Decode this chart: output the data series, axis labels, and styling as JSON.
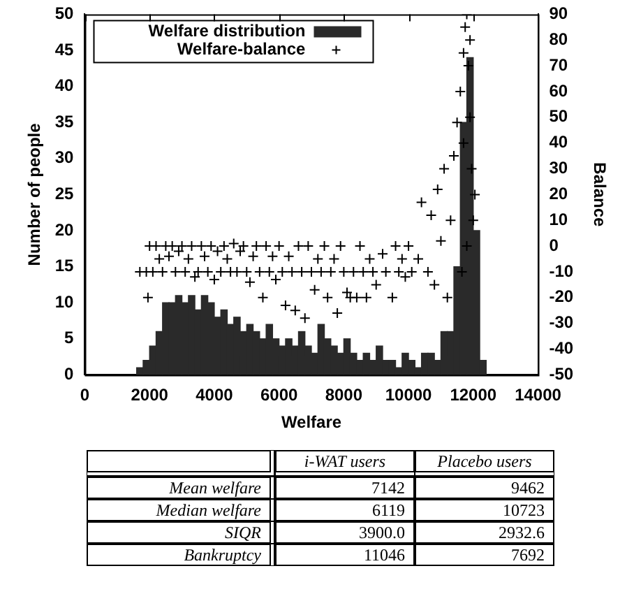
{
  "chart_data": [
    {
      "type": "histogram",
      "xlabel": "Welfare",
      "ylabel": "Number of people",
      "y2label": "Balance",
      "legend": "top left",
      "grid": false,
      "xlim": [
        0,
        14000
      ],
      "xticks": [
        0,
        2000,
        4000,
        6000,
        8000,
        10000,
        12000,
        14000
      ],
      "ylim": [
        0,
        50
      ],
      "yticks": [
        0,
        5,
        10,
        15,
        20,
        25,
        30,
        35,
        40,
        45,
        50
      ],
      "y2lim": [
        -50,
        90
      ],
      "y2ticks": [
        -50,
        -40,
        -30,
        -20,
        -10,
        0,
        10,
        20,
        30,
        40,
        50,
        60,
        70,
        80,
        90
      ],
      "series": [
        {
          "name": "Welfare distribution",
          "type": "histogram",
          "color": "#2a2a2a",
          "bins": [
            1600,
            1800,
            2000,
            2200,
            2400,
            2600,
            2800,
            3000,
            3200,
            3400,
            3600,
            3800,
            4000,
            4200,
            4400,
            4600,
            4800,
            5000,
            5200,
            5400,
            5600,
            5800,
            6000,
            6200,
            6400,
            6600,
            6800,
            7000,
            7200,
            7400,
            7600,
            7800,
            8000,
            8200,
            8400,
            8600,
            8800,
            9000,
            9200,
            9400,
            9600,
            9800,
            10000,
            10200,
            10400,
            10600,
            10800,
            11000,
            11200,
            11400,
            11600,
            11800,
            12000,
            12200,
            12400
          ],
          "values": [
            1,
            2,
            4,
            6,
            10,
            10,
            11,
            10,
            11,
            9,
            11,
            10,
            8,
            9,
            7,
            8,
            6,
            7,
            6,
            5,
            7,
            5,
            4,
            5,
            4,
            6,
            4,
            3,
            7,
            5,
            4,
            3,
            5,
            3,
            2,
            3,
            2,
            4,
            2,
            2,
            1,
            3,
            2,
            1,
            3,
            3,
            2,
            6,
            6,
            15,
            35,
            44,
            20,
            2
          ]
        },
        {
          "name": "Welfare-balance",
          "type": "scatter",
          "axis": "y2",
          "color": "#000000",
          "marker": "cross",
          "x": [
            1700,
            1900,
            1950,
            2000,
            2100,
            2200,
            2300,
            2400,
            2500,
            2600,
            2700,
            2800,
            2900,
            3000,
            3100,
            3200,
            3300,
            3400,
            3500,
            3600,
            3700,
            3800,
            3900,
            4000,
            4100,
            4200,
            4300,
            4400,
            4500,
            4600,
            4700,
            4800,
            4900,
            5000,
            5100,
            5200,
            5300,
            5400,
            5500,
            5600,
            5700,
            5800,
            5900,
            6000,
            6100,
            6200,
            6300,
            6400,
            6500,
            6600,
            6700,
            6800,
            6900,
            7000,
            7100,
            7200,
            7300,
            7400,
            7500,
            7600,
            7700,
            7800,
            7900,
            8000,
            8100,
            8200,
            8300,
            8400,
            8500,
            8600,
            8700,
            8800,
            8900,
            9000,
            9200,
            9300,
            9500,
            9600,
            9700,
            9800,
            9900,
            10000,
            10100,
            10300,
            10400,
            10600,
            10700,
            10800,
            10900,
            11000,
            11100,
            11200,
            11300,
            11400,
            11500,
            11600,
            11700,
            11750,
            11800,
            11850,
            11900,
            11950,
            12000,
            12050,
            11650,
            11800,
            11700,
            11900
          ],
          "values": [
            -10,
            -10,
            -20,
            0,
            -10,
            0,
            -5,
            -10,
            0,
            -4,
            0,
            -10,
            -2,
            0,
            -10,
            -5,
            0,
            -12,
            -10,
            0,
            -4,
            -10,
            0,
            -13,
            -2,
            -10,
            0,
            -5,
            -10,
            1,
            -10,
            -2,
            0,
            -10,
            -14,
            -4,
            0,
            -10,
            -20,
            0,
            -10,
            -4,
            -13,
            0,
            -10,
            -23,
            -4,
            -10,
            -25,
            0,
            -10,
            -28,
            0,
            -10,
            -17,
            -5,
            -10,
            0,
            -20,
            -10,
            -5,
            -26,
            0,
            -10,
            -18,
            -20,
            -10,
            -20,
            0,
            -10,
            -20,
            -5,
            -10,
            -15,
            -3,
            -10,
            -20,
            0,
            -10,
            -5,
            -12,
            0,
            -10,
            -5,
            17,
            -10,
            12,
            -15,
            22,
            2,
            30,
            -20,
            10,
            35,
            48,
            60,
            75,
            85,
            90,
            70,
            50,
            30,
            10,
            20,
            -10,
            0,
            40,
            80
          ]
        }
      ]
    },
    {
      "type": "other",
      "categories": [
        "i-WAT users",
        "Placebo users"
      ],
      "y_categories": [
        "Mean welfare",
        "Median welfare",
        "SIQR",
        "Bankruptcy"
      ],
      "cell_labels": [
        [
          "7142",
          "9462"
        ],
        [
          "6119",
          "10723"
        ],
        [
          "3900.0",
          "2932.6"
        ],
        [
          "11046",
          "7692"
        ]
      ]
    }
  ]
}
